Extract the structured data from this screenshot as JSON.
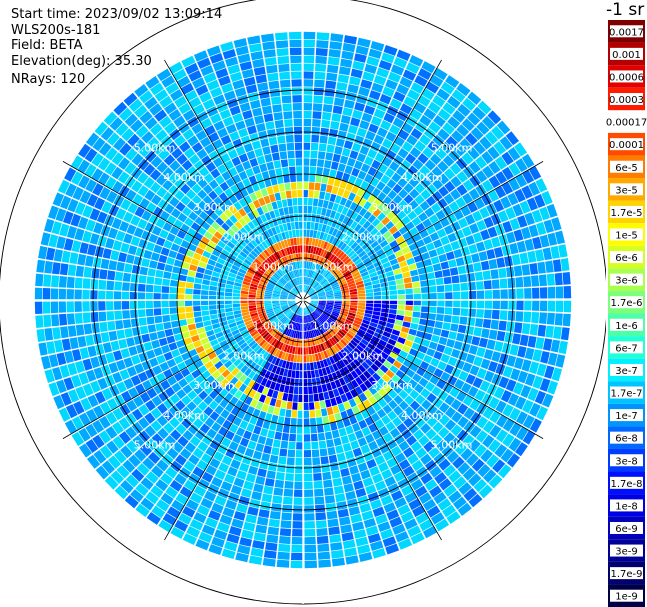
{
  "info": {
    "start_time": "Start time: 2023/09/02 13:09:14",
    "instrument": "WLS200s-181",
    "field": "Field: BETA",
    "elevation": "Elevation(deg): 35.30",
    "nrays": "NRays: 120"
  },
  "colorbar": {
    "unit": "-1 sr",
    "labels": [
      "0.0017",
      "0.001",
      "0.0006",
      "0.0003",
      "0.00017",
      "0.0001",
      "6e-5",
      "3e-5",
      "1.7e-5",
      "1e-5",
      "6e-6",
      "3e-6",
      "1.7e-6",
      "1e-6",
      "6e-7",
      "3e-7",
      "1.7e-7",
      "1e-7",
      "6e-8",
      "3e-8",
      "1.7e-8",
      "1e-8",
      "6e-9",
      "3e-9",
      "1.7e-9",
      "1e-9"
    ],
    "colors": [
      "#7f0000",
      "#b40000",
      "#e00000",
      "#ff1a00",
      "#ffffff",
      "#ff4a00",
      "#ff7c00",
      "#ffa800",
      "#ffd200",
      "#fffc00",
      "#d6ff21",
      "#a9ff4e",
      "#7cff7b",
      "#4effa9",
      "#21ffd6",
      "#00f0ff",
      "#00c4ff",
      "#0094ff",
      "#0068ff",
      "#003cff",
      "#0010ff",
      "#0000e4",
      "#0000bd",
      "#000096",
      "#00006f",
      "#000048"
    ]
  },
  "chart_data": {
    "type": "heatmap",
    "projection": "polar (PPI)",
    "field": "BETA",
    "rays": 120,
    "range_ring_labels": [
      "1.00km",
      "2.00km",
      "3.00km",
      "4.00km",
      "5.00km"
    ],
    "range_ring_km": [
      1,
      2,
      3,
      4,
      5
    ],
    "max_range_km": 6.4,
    "spokes_deg": [
      0,
      30,
      60,
      90,
      120,
      150,
      180,
      210,
      240,
      270,
      300,
      330
    ],
    "features": [
      {
        "desc": "high-backscatter ring",
        "range_km": 1.2,
        "value": "3e-5 to 0.0001"
      },
      {
        "desc": "high-backscatter ring",
        "range_km": 2.65,
        "value": "6e-6 to 6e-5"
      },
      {
        "desc": "low-backscatter sector",
        "az_deg": [
          90,
          210
        ],
        "range_km": [
          0.3,
          2.6
        ],
        "value": "1e-8 to 1e-9"
      }
    ]
  }
}
